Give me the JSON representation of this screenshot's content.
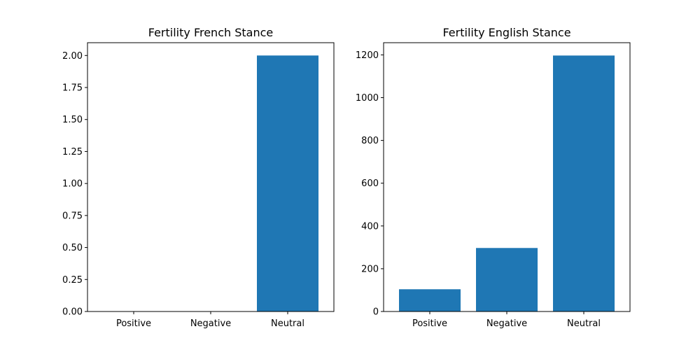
{
  "chart_data": [
    {
      "type": "bar",
      "title": "Fertility French Stance",
      "categories": [
        "Positive",
        "Negative",
        "Neutral"
      ],
      "values": [
        0,
        0,
        2
      ],
      "ylim": [
        0,
        2.1
      ],
      "yticks": [
        0,
        0.25,
        0.5,
        0.75,
        1.0,
        1.25,
        1.5,
        1.75,
        2.0
      ],
      "ytick_labels": [
        "0.00",
        "0.25",
        "0.50",
        "0.75",
        "1.00",
        "1.25",
        "1.50",
        "1.75",
        "2.00"
      ],
      "xlabel": "",
      "ylabel": "",
      "grid": false,
      "bar_color": "#1f77b4"
    },
    {
      "type": "bar",
      "title": "Fertility English Stance",
      "categories": [
        "Positive",
        "Negative",
        "Neutral"
      ],
      "values": [
        104,
        297,
        1197
      ],
      "ylim": [
        0,
        1257
      ],
      "yticks": [
        0,
        200,
        400,
        600,
        800,
        1000,
        1200
      ],
      "ytick_labels": [
        "0",
        "200",
        "400",
        "600",
        "800",
        "1000",
        "1200"
      ],
      "xlabel": "",
      "ylabel": "",
      "grid": false,
      "bar_color": "#1f77b4"
    }
  ]
}
